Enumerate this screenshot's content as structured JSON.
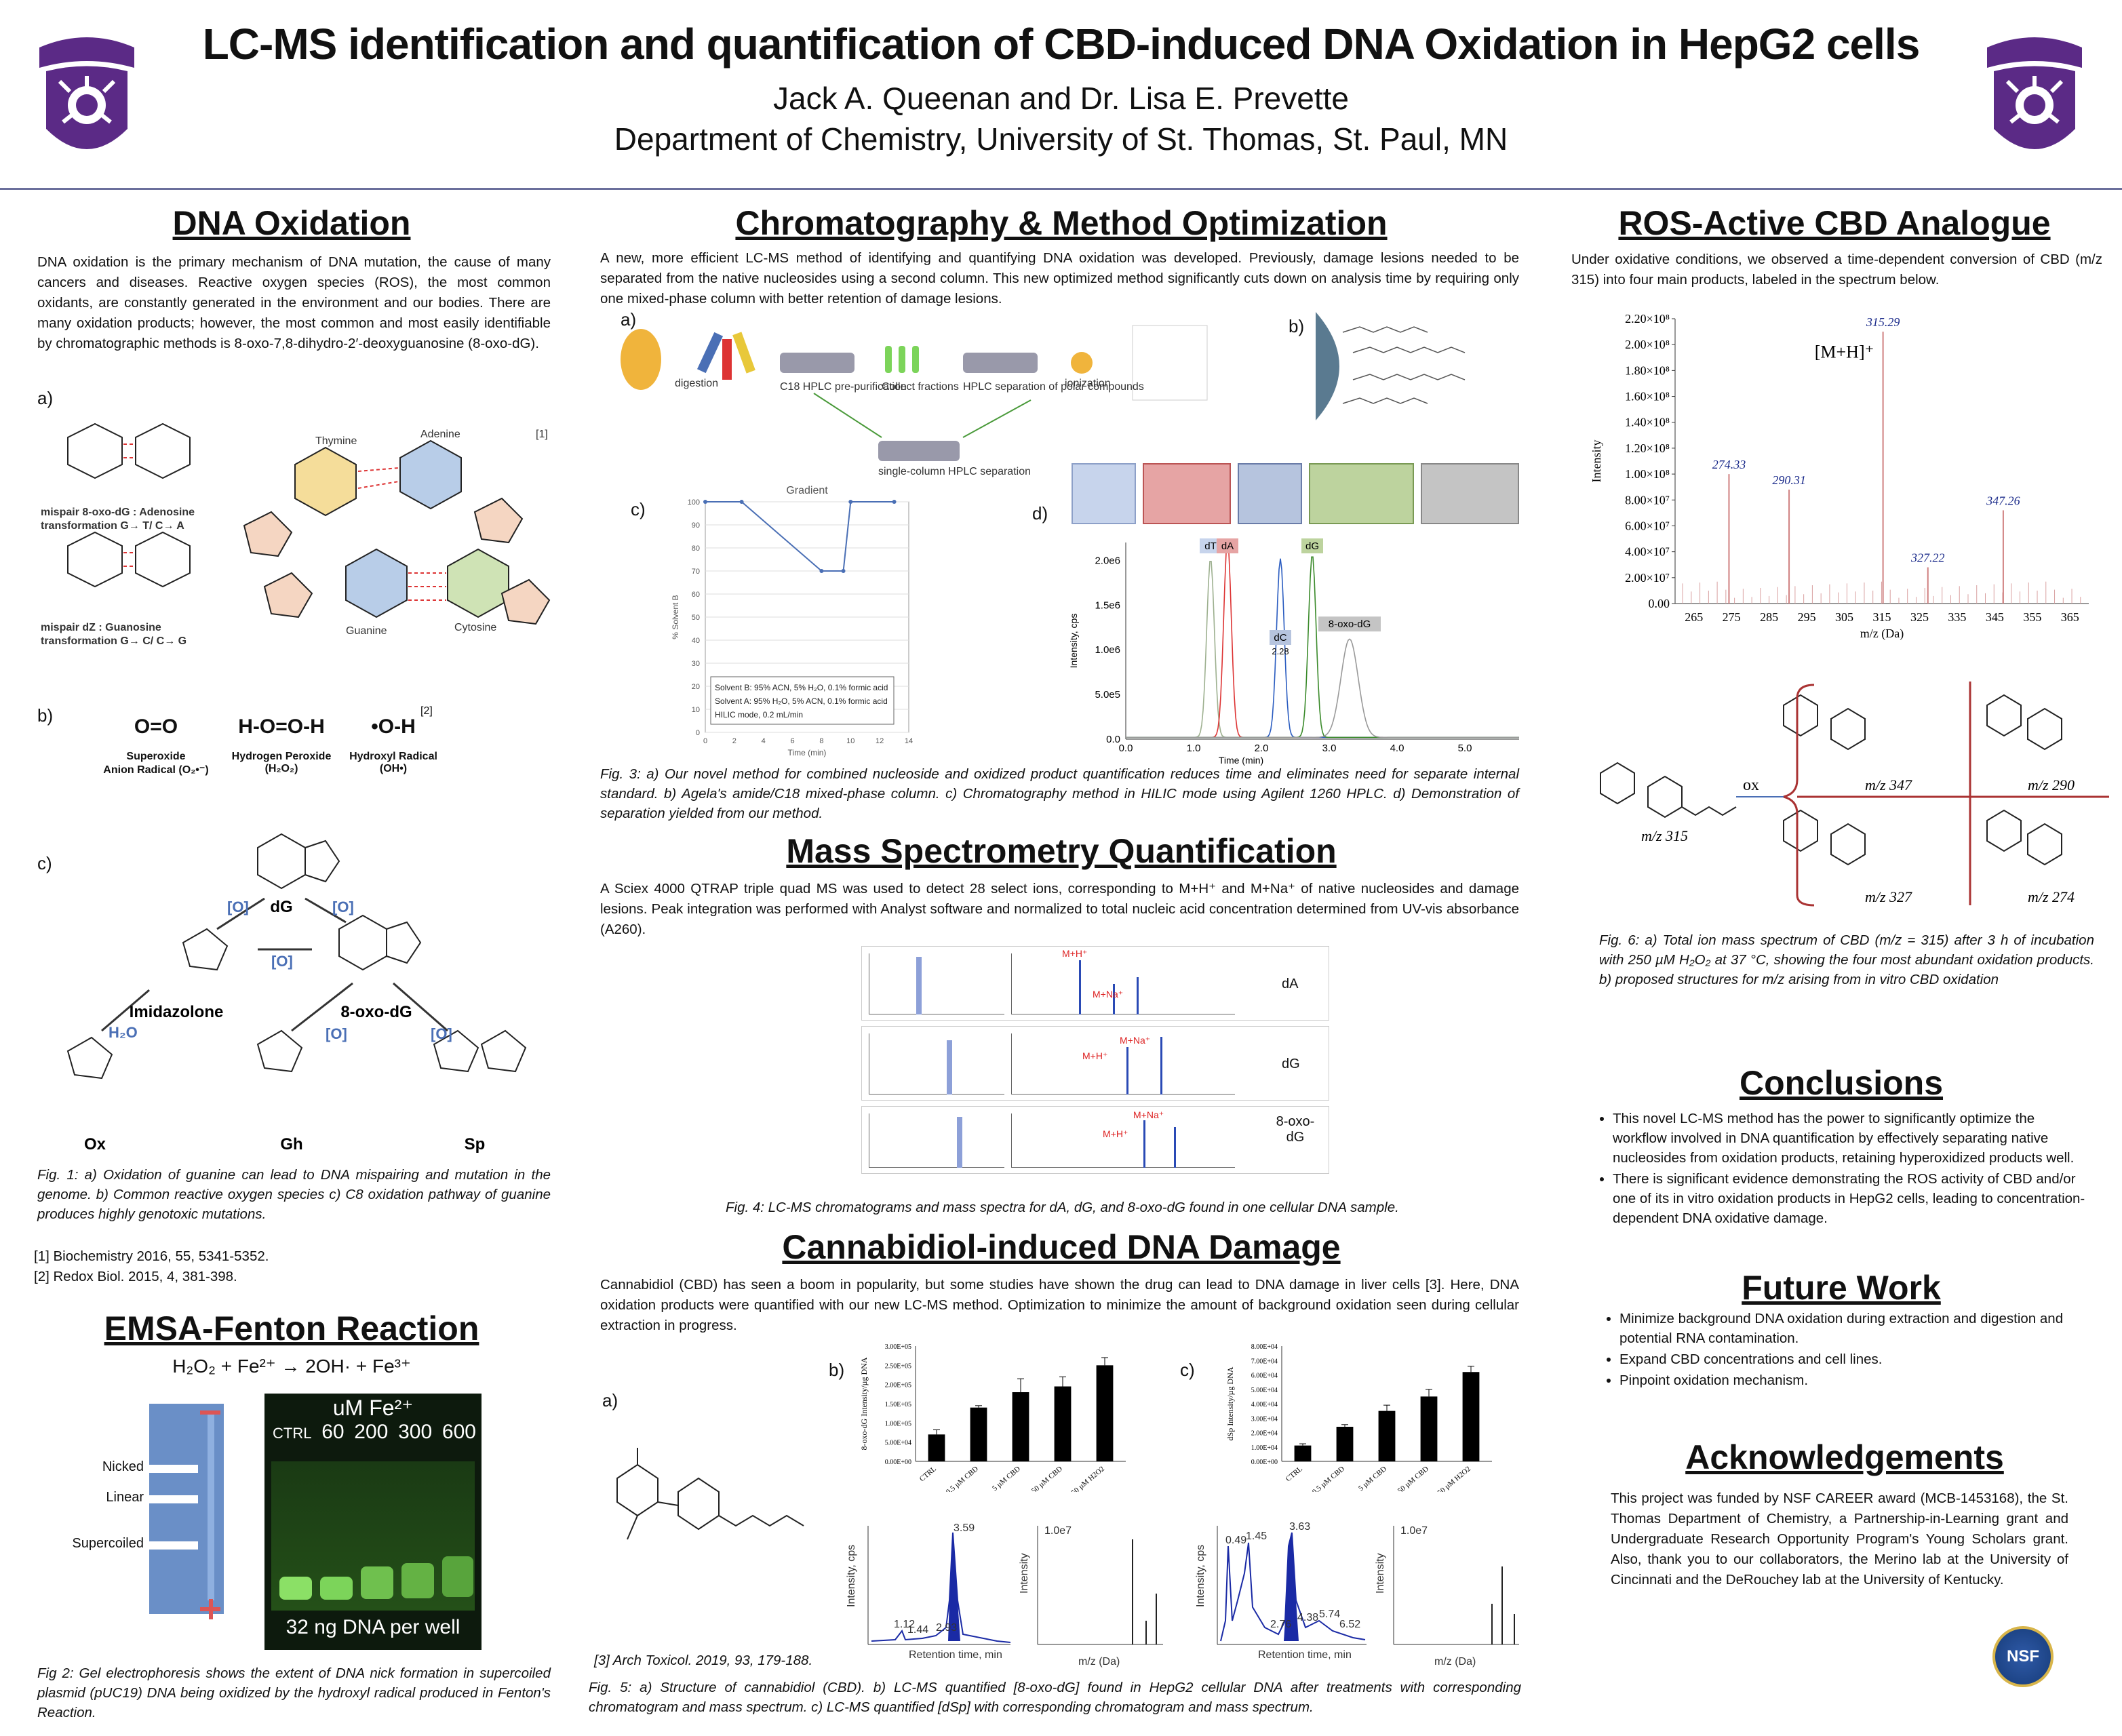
{
  "header": {
    "title": "LC-MS identification and quantification of CBD-induced DNA Oxidation in HepG2 cells",
    "authors": "Jack A. Queenan and Dr. Lisa E. Prevette",
    "department": "Department of Chemistry, University of St. Thomas, St. Paul, MN"
  },
  "colors": {
    "purple": "#5b2a86",
    "accent_blue": "#4a6fb5",
    "divider": "#6b6f9c"
  },
  "dna_oxidation": {
    "heading": "DNA Oxidation",
    "body": "DNA oxidation is the primary mechanism of DNA mutation, the cause of many cancers and diseases. Reactive oxygen species (ROS), the most common oxidants, are constantly generated in the environment and our bodies. There are many oxidation products; however, the most common and most easily identifiable by chromatographic methods is 8-oxo-7,8-dihydro-2′-deoxyguanosine (8-oxo-dG).",
    "panel_a": "a)",
    "panel_b": "b)",
    "panel_c": "c)",
    "mispair1": "mispair 8-oxo-dG : Adenosine",
    "transform1": "transformation G→ T/ C→ A",
    "mispair2": "mispair dZ : Guanosine",
    "transform2": "transformation G→ C/ C→ G",
    "ref1_tag": "[1]",
    "ref2_tag": "[2]",
    "thymine": "Thymine",
    "adenine": "Adenine",
    "guanine": "Guanine",
    "cytosine": "Cytosine",
    "ros": [
      {
        "formula": "O=O",
        "name": "Superoxide",
        "sub": "Anion Radical (O₂•⁻)"
      },
      {
        "formula": "H-O=O-H",
        "name": "Hydrogen Peroxide",
        "sub": "(H₂O₂)"
      },
      {
        "formula": "•O-H",
        "name": "Hydroxyl Radical",
        "sub": "(OH•)"
      }
    ],
    "pathway": {
      "dG": "dG",
      "imid": "Imidazolone",
      "oxo": "8-oxo-dG",
      "ox": "Ox",
      "gh": "Gh",
      "sp": "Sp",
      "o": "[O]",
      "h2o": "H₂O"
    },
    "caption": "Fig. 1: a) Oxidation of guanine can lead to DNA mispairing and mutation in the genome. b) Common reactive oxygen species c) C8 oxidation pathway of guanine produces highly genotoxic mutations.",
    "refs": [
      "[1] Biochemistry 2016, 55, 5341-5352.",
      "[2] Redox Biol. 2015, 4, 381-398."
    ]
  },
  "emsa": {
    "heading": "EMSA-Fenton Reaction",
    "equation": "H₂O₂ + Fe²⁺ → 2OH· + Fe³⁺",
    "conc_label": "uM Fe²⁺",
    "lanes": [
      "CTRL",
      "60",
      "200",
      "300",
      "600"
    ],
    "bands": [
      "Nicked",
      "Linear",
      "Supercoiled"
    ],
    "gel_note": "32 ng DNA per well",
    "caption": "Fig 2: Gel electrophoresis shows the extent of DNA nick formation in supercoiled plasmid (pUC19) DNA being oxidized by the hydroxyl radical produced in Fenton's Reaction."
  },
  "chromatography": {
    "heading": "Chromatography & Method Optimization",
    "body": "A new, more efficient LC-MS method of identifying and quantifying DNA oxidation was developed. Previously, damage lesions needed to be separated from the native nucleosides using a second column. This new optimized method significantly cuts down on analysis time by requiring only one mixed-phase column with better retention of damage lesions.",
    "panel_a": "a)",
    "panel_b": "b)",
    "panel_c": "c)",
    "panel_d": "d)",
    "workflow": [
      "digestion",
      "C18 HPLC pre-purification",
      "Collect fractions",
      "HPLC separation of polar compounds",
      "ionization",
      "single-column HPLC separation"
    ],
    "gradient_title": "Gradient",
    "gradient_ylabel": "% Solvent B",
    "gradient_xlabel": "Time (min)",
    "gradient_notes": [
      "Solvent B: 95% ACN, 5% H₂O, 0.1% formic acid",
      "Solvent A: 95% H₂O, 5% ACN, 0.1% formic acid",
      "HILIC mode, 0.2 mL/min"
    ],
    "chrom_ylabel": "Intensity, cps",
    "chrom_xlabel": "Time (min)",
    "peaks": [
      "dT",
      "dA",
      "dC",
      "dG",
      "8-oxo-dG"
    ],
    "dc_rt": "2.28",
    "caption": "Fig. 3: a) Our novel method for combined nucleoside and oxidized product quantification reduces time and eliminates need for separate internal standard. b) Agela's amide/C18 mixed-phase column. c) Chromatography method in HILIC mode using Agilent 1260 HPLC. d) Demonstration of separation yielded from our method."
  },
  "mass_spec": {
    "heading": "Mass Spectrometry Quantification",
    "body": "A Sciex 4000 QTRAP triple quad MS was used to detect 28 select ions, corresponding to M+H⁺ and M+Na⁺ of native nucleosides and damage lesions. Peak integration was performed with Analyst software and normalized to total nucleic acid concentration determined from UV-vis absorbance (A260).",
    "rows": [
      {
        "label": "dA",
        "ion1": "M+H⁺",
        "ion2": "M+Na⁺"
      },
      {
        "label": "dG",
        "ion1": "M+H⁺",
        "ion2": "M+Na⁺"
      },
      {
        "label": "8-oxo-dG",
        "ion1": "M+H⁺",
        "ion2": "M+Na⁺"
      }
    ],
    "caption": "Fig. 4: LC-MS chromatograms and mass spectra for dA, dG, and 8-oxo-dG found in one cellular DNA sample."
  },
  "cbd_damage": {
    "heading": "Cannabidiol-induced DNA Damage",
    "body": "Cannabidiol (CBD) has seen a boom in popularity, but some studies have shown the drug can lead to DNA damage in liver cells [3]. Here, DNA oxidation products were quantified with our new LC-MS method. Optimization to minimize the amount of background oxidation seen during cellular extraction in progress.",
    "panel_a": "a)",
    "panel_b": "b)",
    "panel_c": "c)",
    "ref": "[3] Arch Toxicol. 2019, 93, 179-188.",
    "caption": "Fig. 5: a) Structure of cannabidiol (CBD). b) LC-MS quantified [8-oxo-dG] found in HepG2 cellular DNA after treatments with corresponding chromatogram and mass spectrum. c) LC-MS quantified [dSp] with corresponding chromatogram and mass spectrum.",
    "chrom_b_labels": [
      "3.59",
      "1.12",
      "1.44",
      "2.93"
    ],
    "chrom_c_labels": [
      "3.63",
      "0.49",
      "1.45",
      "2.76",
      "4.38",
      "5.74",
      "6.52"
    ],
    "intensity_label": "Intensity",
    "intensity_cps": "Intensity, cps",
    "rt_label": "Retention time, min",
    "mz_label": "m/z (Da)",
    "ms_max": "1.0e7"
  },
  "ros_cbd": {
    "heading": "ROS-Active CBD Analogue",
    "body": "Under oxidative conditions, we observed a time-dependent conversion of CBD (m/z 315) into four main products, labeled in the spectrum below.",
    "mh_label": "[M+H]⁺",
    "ox_label": "ox",
    "structs": [
      "m/z 315",
      "m/z 347",
      "m/z 290",
      "m/z 327",
      "m/z 274"
    ],
    "caption": "Fig. 6: a) Total ion mass spectrum of CBD (m/z = 315) after 3 h of incubation with 250 µM H₂O₂ at 37 °C, showing the four most abundant oxidation products. b) proposed structures for m/z arising from in vitro CBD oxidation"
  },
  "conclusions": {
    "heading": "Conclusions",
    "items": [
      "This novel LC-MS method has the power to significantly optimize the workflow involved in DNA quantification by effectively separating native nucleosides from oxidation products, retaining hyperoxidized products well.",
      "There is significant evidence demonstrating the ROS activity of CBD and/or one of its in vitro oxidation products in HepG2 cells, leading to concentration-dependent DNA oxidative damage."
    ]
  },
  "future_work": {
    "heading": "Future Work",
    "items": [
      "Minimize background DNA oxidation during extraction and digestion and potential RNA contamination.",
      "Expand CBD concentrations and cell lines.",
      "Pinpoint oxidation mechanism."
    ]
  },
  "acknowledgements": {
    "heading": "Acknowledgements",
    "body": "This project was funded by NSF CAREER award (MCB-1453168), the St. Thomas Department of Chemistry, a Partnership-in-Learning grant and Undergraduate Research Opportunity Program's Young Scholars grant. Also, thank you to our collaborators, the Merino lab at the University of Cincinnati and the DeRouchey lab at the University of Kentucky.",
    "nsf": "NSF"
  },
  "chart_data": [
    {
      "type": "line",
      "title": "Gradient",
      "xlabel": "Time (min)",
      "ylabel": "% Solvent B",
      "x": [
        0,
        2.5,
        8,
        9.5,
        10,
        13
      ],
      "values": [
        100,
        100,
        70,
        70,
        100,
        100
      ],
      "xlim": [
        0,
        14
      ],
      "ylim": [
        0,
        100
      ],
      "xticks": [
        "0",
        "2",
        "4",
        "6",
        "8",
        "10",
        "12",
        "14"
      ],
      "yticks": [
        "0",
        "10",
        "20",
        "30",
        "40",
        "50",
        "60",
        "70",
        "80",
        "90",
        "100"
      ]
    },
    {
      "type": "line",
      "title": "",
      "xlabel": "Time (min)",
      "ylabel": "Intensity, cps",
      "xlim": [
        0,
        5.8
      ],
      "ylim": [
        0,
        2200000.0
      ],
      "xticks": [
        "0.0",
        "1.0",
        "2.0",
        "3.0",
        "4.0",
        "5.0"
      ],
      "yticks": [
        "0.0",
        "5.0e5",
        "1.0e6",
        "1.5e6",
        "2.0e6"
      ],
      "series": [
        {
          "name": "dT",
          "peak_rt": 1.25,
          "peak_height": 2000000.0,
          "color": "#9db08f"
        },
        {
          "name": "dA",
          "peak_rt": 1.5,
          "peak_height": 2200000.0,
          "color": "#d33"
        },
        {
          "name": "dC",
          "peak_rt": 2.28,
          "peak_height": 2000000.0,
          "color": "#2a5cc0"
        },
        {
          "name": "dG",
          "peak_rt": 2.75,
          "peak_height": 2050000.0,
          "color": "#3a8a2a"
        },
        {
          "name": "8-oxo-dG",
          "peak_rt": 3.3,
          "peak_height": 1100000.0,
          "color": "#999"
        }
      ]
    },
    {
      "type": "bar",
      "title": "",
      "xlabel": "",
      "ylabel": "8-oxo-dG Intensity/µg DNA",
      "categories": [
        "CTRL",
        "0.5 µM CBD",
        "5 µM CBD",
        "50 µM CBD",
        "50 µM H2O2"
      ],
      "values": [
        70000,
        140000,
        180000,
        195000,
        250000
      ],
      "errors": [
        12000,
        5000,
        35000,
        25000,
        20000
      ],
      "ylim": [
        0,
        300000
      ],
      "yticks": [
        "0.00E+00",
        "5.00E+04",
        "1.00E+05",
        "1.50E+05",
        "2.00E+05",
        "2.50E+05",
        "3.00E+05"
      ]
    },
    {
      "type": "bar",
      "title": "",
      "xlabel": "",
      "ylabel": "dSp Intensity/µg DNA",
      "categories": [
        "CTRL",
        "0.5 µM CBD",
        "5 µM CBD",
        "50 µM CBD",
        "50 µM H2O2"
      ],
      "values": [
        11000,
        24000,
        35000,
        45000,
        62000
      ],
      "errors": [
        1200,
        1500,
        4000,
        5000,
        4000
      ],
      "ylim": [
        0,
        80000
      ],
      "yticks": [
        "0.00E+00",
        "1.00E+04",
        "2.00E+04",
        "3.00E+04",
        "4.00E+04",
        "5.00E+04",
        "6.00E+04",
        "7.00E+04",
        "8.00E+04"
      ]
    },
    {
      "type": "bar",
      "title": "",
      "xlabel": "m/z (Da)",
      "ylabel": "Intensity",
      "xlim": [
        260,
        370
      ],
      "ylim": [
        0,
        220000000
      ],
      "xticks": [
        "265",
        "275",
        "285",
        "295",
        "305",
        "315",
        "325",
        "335",
        "345",
        "355",
        "365"
      ],
      "yticks": [
        "0.00",
        "2.00×10⁷",
        "4.00×10⁷",
        "6.00×10⁷",
        "8.00×10⁷",
        "1.00×10⁸",
        "1.20×10⁸",
        "1.40×10⁸",
        "1.60×10⁸",
        "1.80×10⁸",
        "2.00×10⁸",
        "2.20×10⁸"
      ],
      "peaks": [
        {
          "mz": 274.33,
          "value": 100000000,
          "label": "274.33"
        },
        {
          "mz": 290.31,
          "value": 88000000,
          "label": "290.31"
        },
        {
          "mz": 315.29,
          "value": 210000000,
          "label": "315.29"
        },
        {
          "mz": 327.22,
          "value": 28000000,
          "label": "327.22"
        },
        {
          "mz": 347.26,
          "value": 72000000,
          "label": "347.26"
        }
      ]
    }
  ]
}
